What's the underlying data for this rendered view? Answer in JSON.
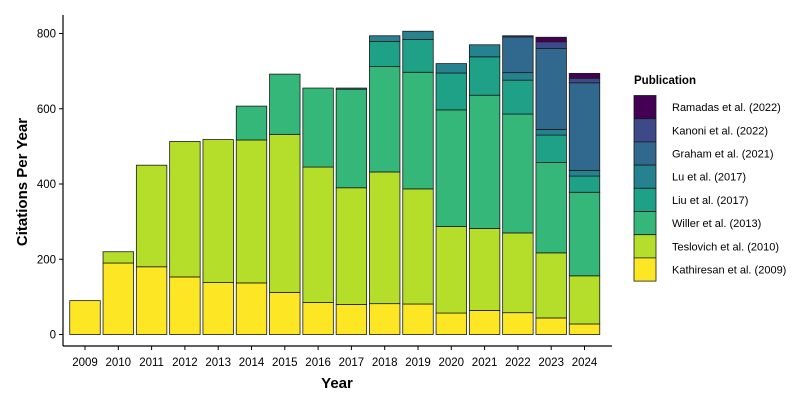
{
  "chart_data": {
    "type": "bar",
    "stacked": true,
    "title": "",
    "xlabel": "Year",
    "ylabel": "Citations Per Year",
    "ylim": [
      0,
      830
    ],
    "yticks": [
      0,
      200,
      400,
      600,
      800
    ],
    "categories": [
      "2009",
      "2010",
      "2011",
      "2012",
      "2013",
      "2014",
      "2015",
      "2016",
      "2017",
      "2018",
      "2019",
      "2020",
      "2021",
      "2022",
      "2023",
      "2024"
    ],
    "legend_title": "Publication",
    "legend_position": "right",
    "series": [
      {
        "name": "Kathiresan et al. (2009)",
        "color": "#fde725",
        "values": [
          90,
          190,
          180,
          153,
          138,
          137,
          112,
          85,
          80,
          82,
          81,
          57,
          64,
          58,
          44,
          28
        ]
      },
      {
        "name": "Teslovich et al. (2010)",
        "color": "#b5de2b",
        "values": [
          0,
          30,
          270,
          360,
          380,
          380,
          420,
          360,
          310,
          350,
          306,
          230,
          218,
          212,
          173,
          128
        ]
      },
      {
        "name": "Willer et al. (2013)",
        "color": "#35b779",
        "values": [
          0,
          0,
          0,
          0,
          0,
          90,
          160,
          210,
          262,
          280,
          310,
          310,
          354,
          316,
          240,
          222
        ]
      },
      {
        "name": "Liu et al. (2017)",
        "color": "#1fa187",
        "values": [
          0,
          0,
          0,
          0,
          0,
          0,
          0,
          0,
          3,
          67,
          87,
          98,
          102,
          90,
          73,
          43
        ]
      },
      {
        "name": "Lu et al. (2017)",
        "color": "#26828e",
        "values": [
          0,
          0,
          0,
          0,
          0,
          0,
          0,
          0,
          0,
          15,
          22,
          25,
          32,
          20,
          15,
          15
        ]
      },
      {
        "name": "Graham et al. (2021)",
        "color": "#31688e",
        "values": [
          0,
          0,
          0,
          0,
          0,
          0,
          0,
          0,
          0,
          0,
          0,
          0,
          0,
          95,
          215,
          233
        ]
      },
      {
        "name": "Kanoni et al. (2022)",
        "color": "#3e4989",
        "values": [
          0,
          0,
          0,
          0,
          0,
          0,
          0,
          0,
          0,
          0,
          0,
          0,
          0,
          3,
          18,
          12
        ]
      },
      {
        "name": "Ramadas et al. (2022)",
        "color": "#440154",
        "values": [
          0,
          0,
          0,
          0,
          0,
          0,
          0,
          0,
          0,
          0,
          0,
          0,
          0,
          0,
          12,
          13
        ]
      }
    ]
  }
}
